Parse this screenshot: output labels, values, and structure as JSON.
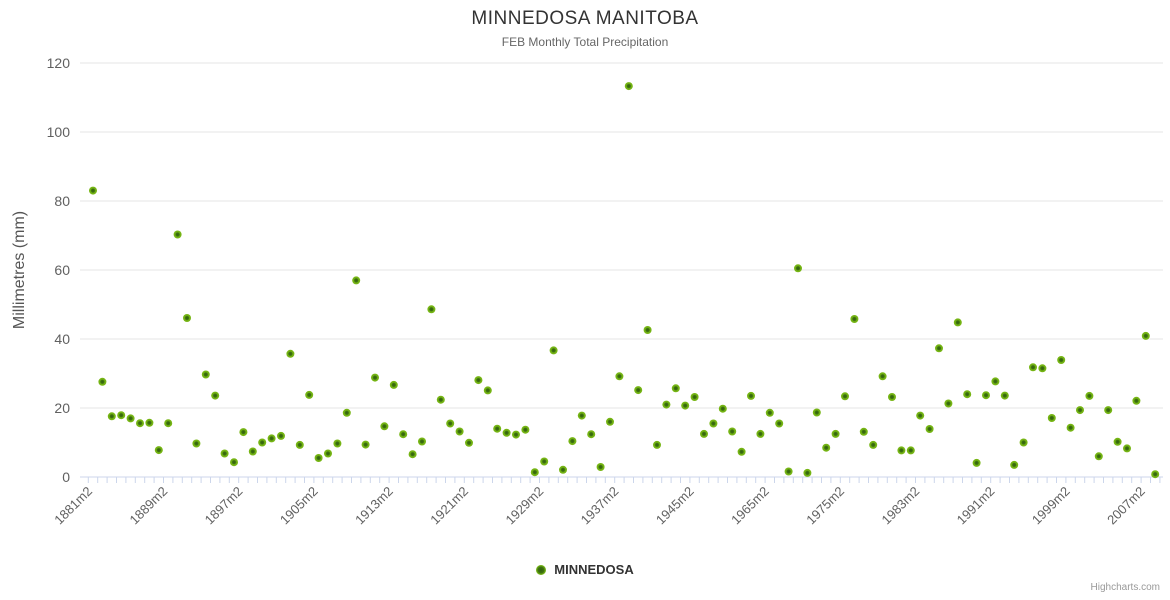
{
  "credit": "Highcharts.com",
  "chart_data": {
    "type": "scatter",
    "title": "MINNEDOSA MANITOBA",
    "subtitle": "FEB Monthly Total Precipitation",
    "ylabel": "Millimetres (mm)",
    "ylim": [
      0,
      120
    ],
    "yticks": [
      0,
      20,
      40,
      60,
      80,
      100,
      120
    ],
    "grid": "horizontal",
    "legend_position": "bottom-center",
    "x_axis": {
      "label_every": 8,
      "tick_labels": [
        "1881m2",
        "1889m2",
        "1897m2",
        "1905m2",
        "1913m2",
        "1921m2",
        "1929m2",
        "1937m2",
        "1945m2",
        "1965m2",
        "1975m2",
        "1983m2",
        "1991m2",
        "1999m2",
        "2007m2"
      ]
    },
    "series": [
      {
        "name": "MINNEDOSA",
        "color": "#72b212",
        "values": [
          83,
          27.6,
          17.6,
          17.9,
          17,
          15.6,
          15.7,
          7.8,
          15.6,
          70.3,
          46.1,
          9.7,
          29.7,
          23.6,
          6.8,
          4.3,
          13,
          7.4,
          10,
          11.2,
          11.9,
          35.7,
          9.3,
          23.8,
          5.5,
          6.8,
          9.7,
          18.6,
          57,
          9.4,
          28.8,
          14.7,
          26.7,
          12.4,
          6.6,
          10.3,
          48.6,
          22.4,
          15.5,
          13.2,
          9.9,
          28.1,
          25.1,
          14,
          12.8,
          12.3,
          13.7,
          1.4,
          4.5,
          36.7,
          2.1,
          10.4,
          17.8,
          12.4,
          2.9,
          16,
          29.2,
          113.3,
          25.2,
          42.6,
          9.3,
          21,
          25.7,
          20.7,
          23.2,
          12.5,
          15.5,
          19.8,
          13.2,
          7.3,
          23.5,
          12.5,
          18.6,
          15.5,
          1.6,
          60.5,
          1.2,
          18.7,
          8.5,
          12.5,
          23.4,
          45.8,
          13.1,
          9.3,
          29.2,
          23.2,
          7.7,
          7.7,
          17.8,
          13.9,
          37.3,
          21.3,
          44.8,
          24,
          4.1,
          23.7,
          27.7,
          23.6,
          3.5,
          10,
          31.8,
          31.5,
          17.1,
          33.9,
          14.3,
          19.4,
          23.5,
          6,
          19.4,
          10.2,
          8.3,
          22.1,
          40.9,
          0.8
        ]
      }
    ]
  }
}
